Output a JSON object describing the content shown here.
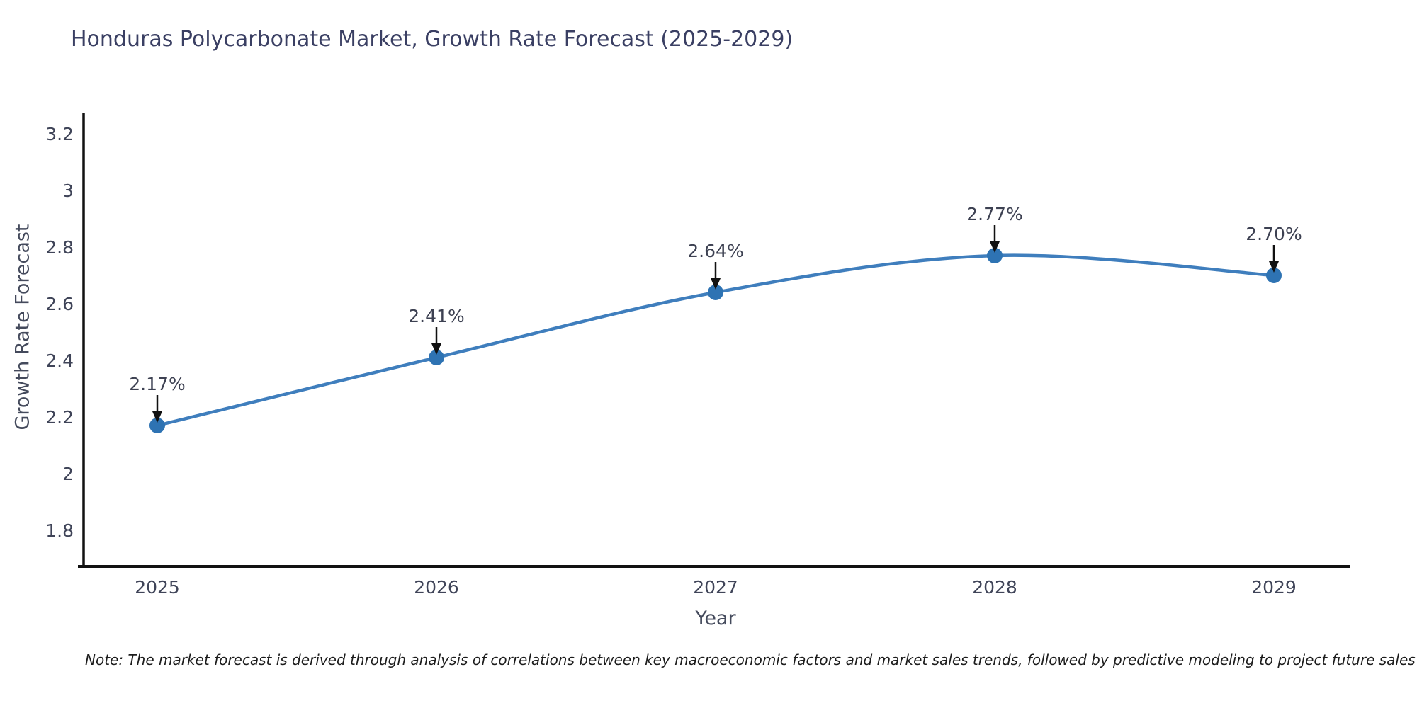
{
  "title": "Honduras Polycarbonate Market, Growth Rate Forecast (2025-2029)",
  "note": "Note: The market forecast is derived through analysis of correlations between key macroeconomic factors and market sales trends, followed by predictive modeling to project future sales",
  "chart_data": {
    "type": "line",
    "curve": "spline",
    "title": "Honduras Polycarbonate Market, Growth Rate Forecast (2025-2029)",
    "xlabel": "Year",
    "ylabel": "Growth Rate Forecast",
    "categories": [
      "2025",
      "2026",
      "2027",
      "2028",
      "2029"
    ],
    "series": [
      {
        "name": "Growth Rate Forecast",
        "values": [
          2.17,
          2.41,
          2.64,
          2.77,
          2.7
        ]
      }
    ],
    "point_labels": [
      "2.17%",
      "2.41%",
      "2.64%",
      "2.77%",
      "2.70%"
    ],
    "y_tick_values": [
      3.2,
      3.0,
      2.8,
      2.6,
      2.4,
      2.2,
      2.0,
      1.8
    ],
    "y_tick_labels": [
      "3.2",
      "3",
      "2.8",
      "2.6",
      "2.4",
      "2.2",
      "2",
      "1.8"
    ],
    "ylim": [
      1.66,
      3.36
    ],
    "grid": false,
    "legend_position": "none",
    "annotation_style": "value label with downward arrow to marker",
    "colors": {
      "line": "#3f7ebd",
      "marker": "#2e73b3",
      "annotation_arrow": "#111111",
      "annotation_text": "#3d4152",
      "axis_line": "#111111",
      "tick_text": "#3f4458",
      "title_text": "#3a3f63",
      "note_text": "#1c1c1c",
      "background": "#ffffff"
    }
  }
}
